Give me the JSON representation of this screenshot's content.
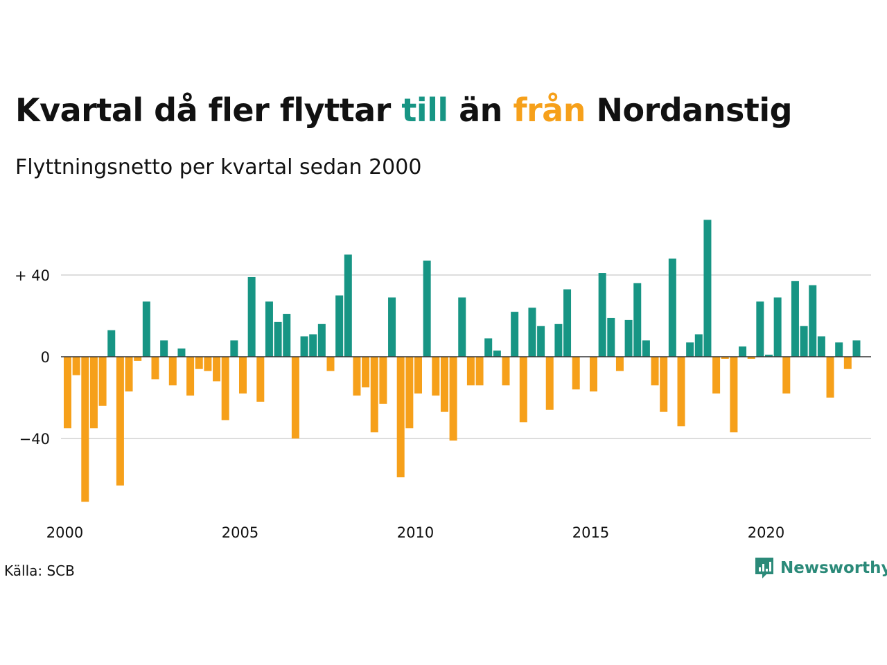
{
  "title": {
    "part1": "Kvartal då fler flyttar ",
    "word_to": "till",
    "part2": " än ",
    "word_from": "från",
    "part3": " Nordanstig"
  },
  "subtitle": "Flyttningsnetto per kvartal sedan 2000",
  "source": "Källa: SCB",
  "brand": "Newsworthy",
  "colors": {
    "positive": "#179584",
    "negative": "#f6a01a",
    "grid": "#dddddd",
    "zero_line": "#333333",
    "brand": "#2b8a79"
  },
  "chart_data": {
    "type": "bar",
    "x_start": "2000 Q1",
    "x_ticks": [
      "2000",
      "2005",
      "2010",
      "2015",
      "2020"
    ],
    "y_ticks": [
      {
        "value": 40,
        "label": "+ 40"
      },
      {
        "value": 0,
        "label": "0"
      },
      {
        "value": -40,
        "label": "−40"
      }
    ],
    "ylim": [
      -75,
      68
    ],
    "grid": true,
    "values": [
      -35,
      -9,
      -71,
      -35,
      -24,
      13,
      -63,
      -17,
      -2,
      27,
      -11,
      8,
      -14,
      4,
      -19,
      -6,
      -7,
      -12,
      -31,
      8,
      -18,
      39,
      -22,
      27,
      17,
      21,
      -40,
      10,
      11,
      16,
      -7,
      30,
      50,
      -19,
      -15,
      -37,
      -23,
      29,
      -59,
      -35,
      -18,
      47,
      -19,
      -27,
      -41,
      29,
      -14,
      -14,
      9,
      3,
      -14,
      22,
      -32,
      24,
      15,
      -26,
      16,
      33,
      -16,
      0,
      -17,
      41,
      19,
      -7,
      18,
      36,
      8,
      -14,
      -27,
      48,
      -34,
      7,
      11,
      67,
      -18,
      -1,
      -37,
      5,
      -1,
      27,
      1,
      29,
      -18,
      37,
      15,
      35,
      10,
      -20,
      7,
      -6,
      8
    ]
  }
}
